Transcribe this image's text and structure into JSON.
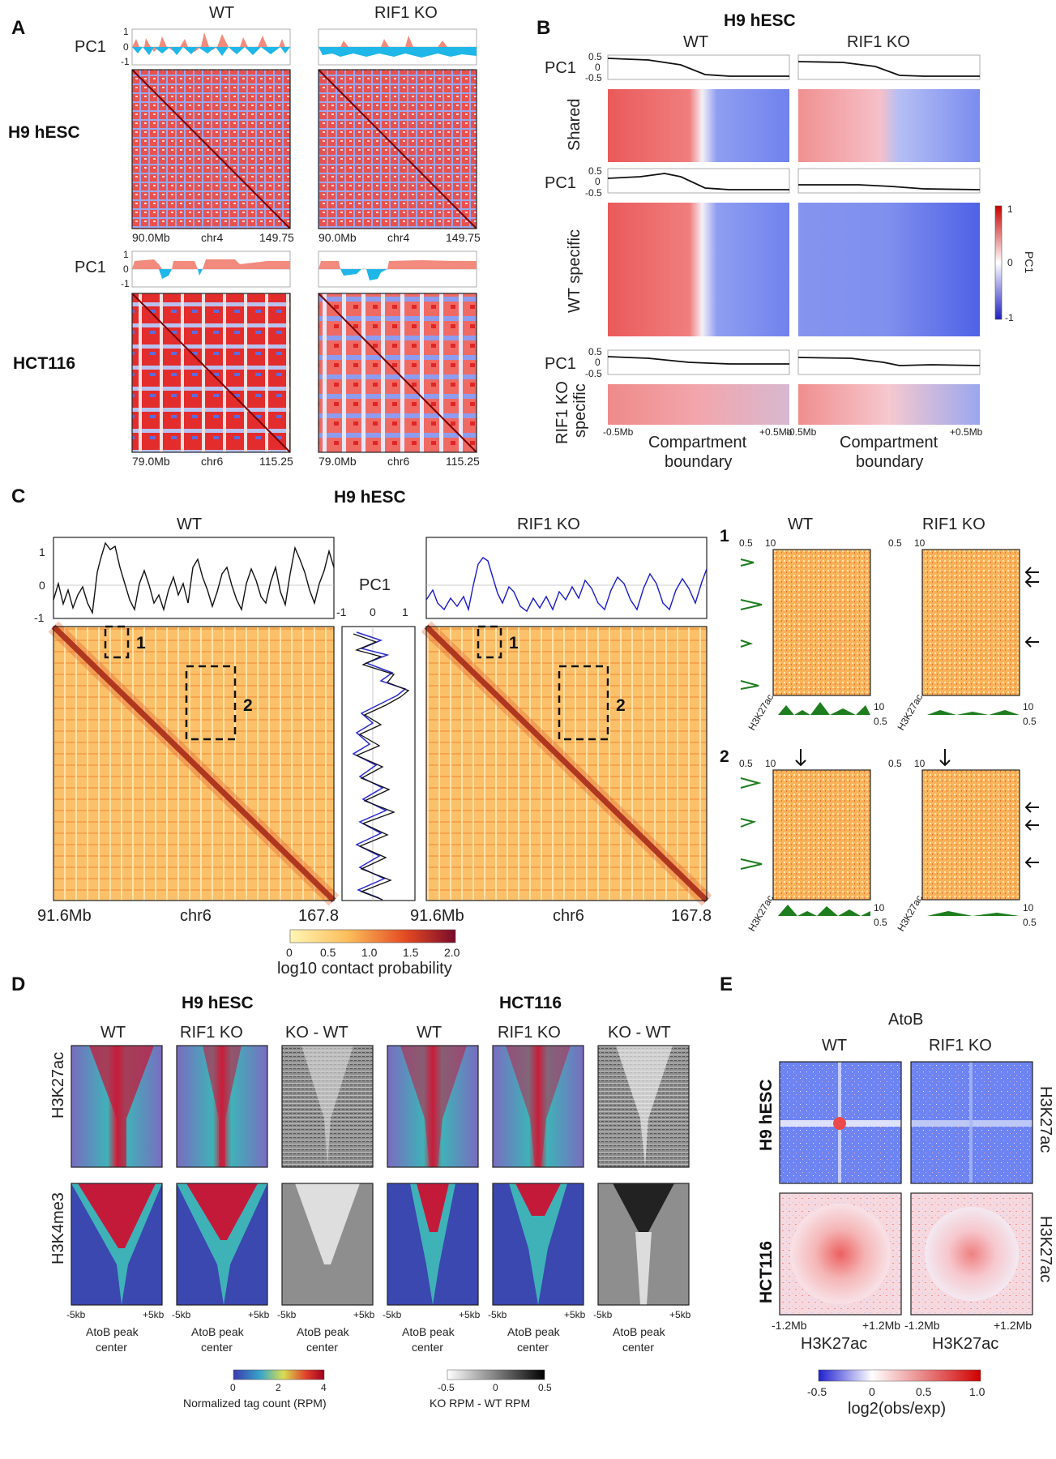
{
  "panel_a": {
    "letter": "A",
    "col_wt": "WT",
    "col_ko": "RIF1 KO",
    "pc1": "PC1",
    "tick_pos": "1",
    "tick_zero": "0",
    "tick_neg": "-1",
    "row1": "H9 hESC",
    "row2": "HCT116",
    "row1_axis": {
      "start": "90.0Mb",
      "chrom": "chr4",
      "end": "149.75"
    },
    "row2_axis": {
      "start": "79.0Mb",
      "chrom": "chr6",
      "end": "115.25"
    }
  },
  "panel_b": {
    "letter": "B",
    "title": "H9 hESC",
    "col_wt": "WT",
    "col_ko": "RIF1 KO",
    "pc1": "PC1",
    "t_pos": "0.5",
    "t_zero": "0",
    "t_neg": "-0.5",
    "groups": [
      "Shared",
      "WT specific",
      "RIF1 KO specific"
    ],
    "x_left": "-0.5Mb",
    "x_right": "+0.5Mb",
    "x_center_1": "Compartment",
    "x_center_2": "boundary",
    "cbar": {
      "label": "PC1",
      "max": "1",
      "mid": "0",
      "min": "-1"
    }
  },
  "panel_c": {
    "letter": "C",
    "title": "H9 hESC",
    "col_wt": "WT",
    "col_ko": "RIF1 KO",
    "pc1": "PC1",
    "y_pos": "1",
    "y_zero": "0",
    "y_neg": "-1",
    "mid_ticks": [
      "-1",
      "0",
      "1"
    ],
    "axis": {
      "start": "91.6Mb",
      "chrom": "chr6",
      "end": "167.8"
    },
    "box1": "1",
    "box2": "2",
    "cbar": {
      "ticks": [
        "0",
        "0.5",
        "1.0",
        "1.5",
        "2.0"
      ],
      "label": "log10 contact probability"
    },
    "zoom": {
      "row1": "1",
      "row2": "2",
      "col_wt": "WT",
      "col_ko": "RIF1 KO",
      "scale_lo": "0.5",
      "scale_hi": "10",
      "track": "H3K27ac"
    }
  },
  "panel_d": {
    "letter": "D",
    "group1": "H9 hESC",
    "group2": "HCT116",
    "columns": [
      "WT",
      "RIF1 KO",
      "KO - WT",
      "WT",
      "RIF1 KO",
      "KO - WT"
    ],
    "rows": [
      "H3K27ac",
      "H3K4me3"
    ],
    "x_left": "-5kb",
    "x_right": "+5kb",
    "x_label_1": "AtoB peak",
    "x_label_2": "center",
    "cbar1": {
      "ticks": [
        "0",
        "2",
        "4"
      ],
      "label": "Normalized tag count (RPM)"
    },
    "cbar2": {
      "ticks": [
        "-0.5",
        "0",
        "0.5"
      ],
      "label": "KO RPM - WT RPM"
    }
  },
  "panel_e": {
    "letter": "E",
    "title": "AtoB",
    "col_wt": "WT",
    "col_ko": "RIF1 KO",
    "rows": [
      "H9 hESC",
      "HCT116"
    ],
    "side": "H3K27ac",
    "x_left": "-1.2Mb",
    "x_right": "+1.2Mb",
    "x_label": "H3K27ac",
    "cbar": {
      "ticks": [
        "-0.5",
        "0",
        "0.5",
        "1.0"
      ],
      "label": "log2(obs/exp)"
    }
  },
  "colors": {
    "red": "#d7191c",
    "blue": "#2c3cd6",
    "salmon": "#f28b7d",
    "cyan": "#1fb6e8",
    "green": "#1e7d1e"
  }
}
